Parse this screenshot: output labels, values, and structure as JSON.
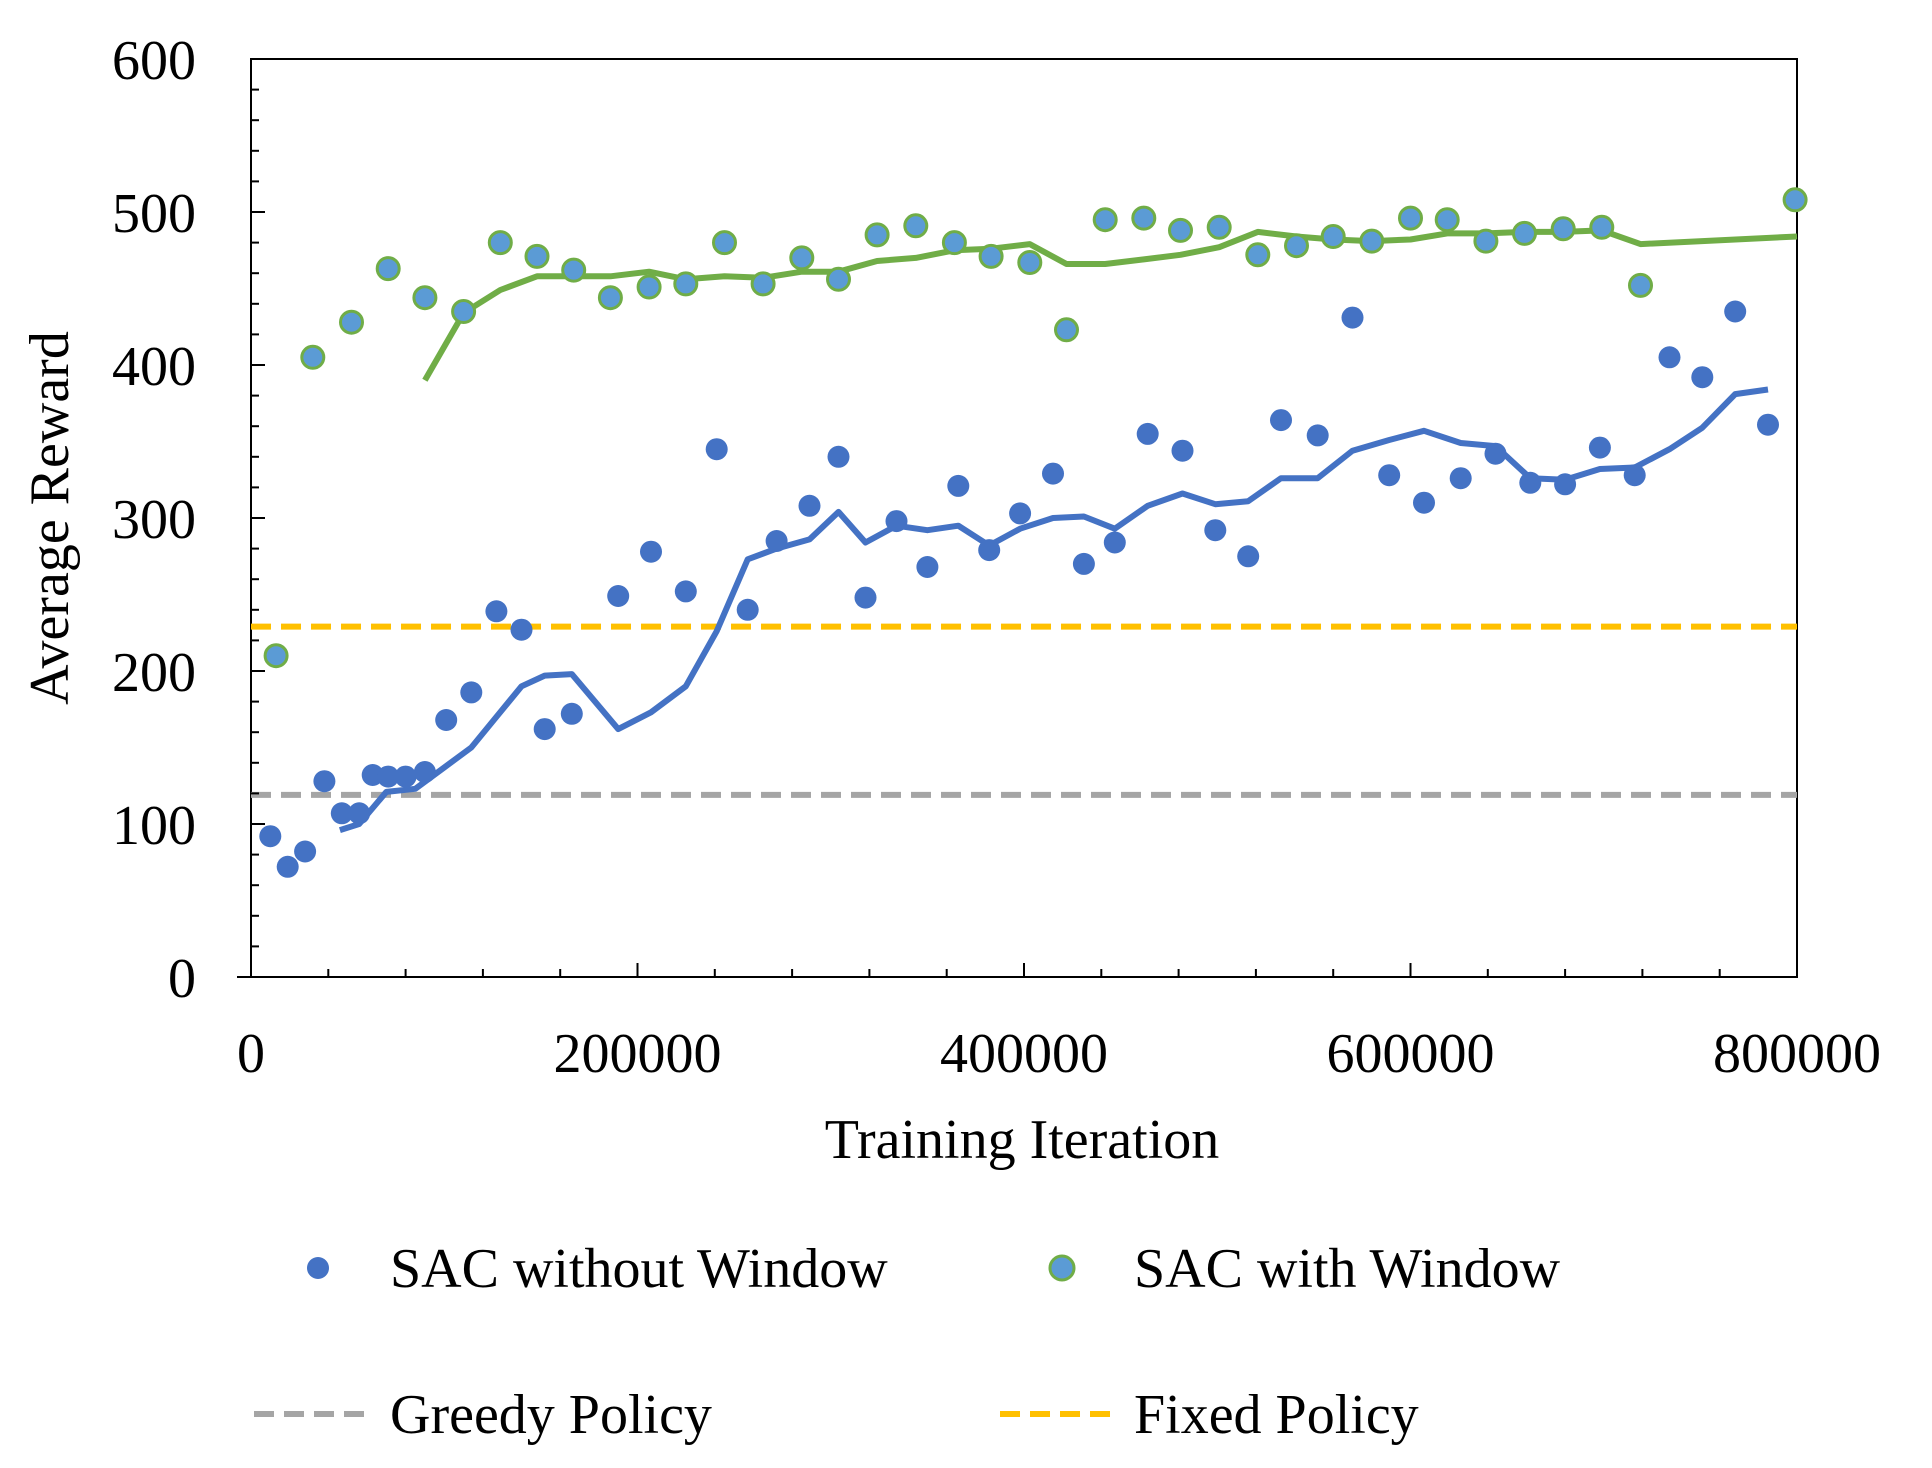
{
  "chart_data": {
    "type": "scatter",
    "xlabel": "Training Iteration",
    "ylabel": "Average Reward",
    "xlim": [
      0,
      800000
    ],
    "ylim": [
      0,
      600
    ],
    "x_ticks": [
      "0",
      "200000",
      "400000",
      "600000",
      "800000"
    ],
    "y_ticks": [
      "0",
      "100",
      "200",
      "300",
      "400",
      "500",
      "600"
    ],
    "grid": false,
    "legend_position": "bottom",
    "series": [
      {
        "name": "SAC without Window",
        "kind": "scatter",
        "color": "#4472C4",
        "points": [
          [
            10000,
            92
          ],
          [
            19000,
            72
          ],
          [
            28000,
            82
          ],
          [
            38000,
            128
          ],
          [
            47000,
            107
          ],
          [
            56000,
            107
          ],
          [
            63000,
            132
          ],
          [
            71000,
            131
          ],
          [
            80000,
            131
          ],
          [
            90000,
            134
          ],
          [
            101000,
            168
          ],
          [
            114000,
            186
          ],
          [
            127000,
            239
          ],
          [
            140000,
            227
          ],
          [
            152000,
            162
          ],
          [
            166000,
            172
          ],
          [
            190000,
            249
          ],
          [
            207000,
            278
          ],
          [
            225000,
            252
          ],
          [
            241000,
            345
          ],
          [
            257000,
            240
          ],
          [
            272000,
            285
          ],
          [
            289000,
            308
          ],
          [
            304000,
            340
          ],
          [
            318000,
            248
          ],
          [
            334000,
            298
          ],
          [
            350000,
            268
          ],
          [
            366000,
            321
          ],
          [
            382000,
            279
          ],
          [
            398000,
            303
          ],
          [
            415000,
            329
          ],
          [
            431000,
            270
          ],
          [
            447000,
            284
          ],
          [
            464000,
            355
          ],
          [
            482000,
            344
          ],
          [
            499000,
            292
          ],
          [
            516000,
            275
          ],
          [
            533000,
            364
          ],
          [
            552000,
            354
          ],
          [
            570000,
            431
          ],
          [
            589000,
            328
          ],
          [
            607000,
            310
          ],
          [
            626000,
            326
          ],
          [
            644000,
            342
          ],
          [
            662000,
            323
          ],
          [
            680000,
            322
          ],
          [
            698000,
            346
          ],
          [
            716000,
            328
          ],
          [
            734000,
            405
          ],
          [
            751000,
            392
          ],
          [
            768000,
            435
          ],
          [
            785000,
            361
          ]
        ]
      },
      {
        "name": "SAC with Window",
        "kind": "scatter",
        "color": "#5B9BD5",
        "edge_color": "#70AD47",
        "points": [
          [
            13000,
            210
          ],
          [
            32000,
            405
          ],
          [
            52000,
            428
          ],
          [
            71000,
            463
          ],
          [
            90000,
            444
          ],
          [
            110000,
            435
          ],
          [
            129000,
            480
          ],
          [
            148000,
            471
          ],
          [
            167000,
            462
          ],
          [
            186000,
            444
          ],
          [
            206000,
            451
          ],
          [
            225000,
            453
          ],
          [
            245000,
            480
          ],
          [
            265000,
            453
          ],
          [
            285000,
            470
          ],
          [
            304000,
            456
          ],
          [
            324000,
            485
          ],
          [
            344000,
            491
          ],
          [
            364000,
            480
          ],
          [
            383000,
            471
          ],
          [
            403000,
            467
          ],
          [
            422000,
            423
          ],
          [
            442000,
            495
          ],
          [
            462000,
            496
          ],
          [
            481000,
            488
          ],
          [
            501000,
            490
          ],
          [
            521000,
            472
          ],
          [
            541000,
            478
          ],
          [
            560000,
            484
          ],
          [
            580000,
            481
          ],
          [
            600000,
            496
          ],
          [
            619000,
            495
          ],
          [
            639000,
            481
          ],
          [
            659000,
            486
          ],
          [
            679000,
            489
          ],
          [
            699000,
            490
          ],
          [
            719000,
            452
          ],
          [
            799000,
            508
          ]
        ]
      },
      {
        "name": "",
        "kind": "line",
        "color": "#4472C4",
        "points": [
          [
            46000,
            96
          ],
          [
            56000,
            100
          ],
          [
            70000,
            121
          ],
          [
            85000,
            123
          ],
          [
            100000,
            137
          ],
          [
            114000,
            150
          ],
          [
            127000,
            170
          ],
          [
            140000,
            190
          ],
          [
            152000,
            197
          ],
          [
            166000,
            198
          ],
          [
            190000,
            162
          ],
          [
            207000,
            173
          ],
          [
            225000,
            190
          ],
          [
            241000,
            226
          ],
          [
            257000,
            273
          ],
          [
            272000,
            280
          ],
          [
            289000,
            286
          ],
          [
            304000,
            304
          ],
          [
            318000,
            284
          ],
          [
            334000,
            295
          ],
          [
            350000,
            292
          ],
          [
            366000,
            295
          ],
          [
            382000,
            282
          ],
          [
            398000,
            293
          ],
          [
            415000,
            300
          ],
          [
            431000,
            301
          ],
          [
            447000,
            293
          ],
          [
            464000,
            308
          ],
          [
            482000,
            316
          ],
          [
            499000,
            309
          ],
          [
            516000,
            311
          ],
          [
            533000,
            326
          ],
          [
            552000,
            326
          ],
          [
            570000,
            344
          ],
          [
            589000,
            351
          ],
          [
            607000,
            357
          ],
          [
            626000,
            349
          ],
          [
            644000,
            347
          ],
          [
            662000,
            326
          ],
          [
            680000,
            325
          ],
          [
            698000,
            332
          ],
          [
            716000,
            333
          ],
          [
            734000,
            345
          ],
          [
            751000,
            359
          ],
          [
            768000,
            381
          ],
          [
            785000,
            384
          ]
        ]
      },
      {
        "name": "",
        "kind": "line",
        "color": "#70AD47",
        "points": [
          [
            90000,
            390
          ],
          [
            110000,
            434
          ],
          [
            129000,
            449
          ],
          [
            148000,
            458
          ],
          [
            167000,
            458
          ],
          [
            186000,
            458
          ],
          [
            206000,
            461
          ],
          [
            225000,
            456
          ],
          [
            245000,
            458
          ],
          [
            265000,
            457
          ],
          [
            285000,
            461
          ],
          [
            304000,
            461
          ],
          [
            324000,
            468
          ],
          [
            344000,
            470
          ],
          [
            364000,
            475
          ],
          [
            383000,
            476
          ],
          [
            403000,
            479
          ],
          [
            422000,
            466
          ],
          [
            442000,
            466
          ],
          [
            462000,
            469
          ],
          [
            481000,
            472
          ],
          [
            501000,
            477
          ],
          [
            521000,
            487
          ],
          [
            541000,
            484
          ],
          [
            560000,
            482
          ],
          [
            580000,
            481
          ],
          [
            600000,
            482
          ],
          [
            619000,
            486
          ],
          [
            639000,
            486
          ],
          [
            659000,
            487
          ],
          [
            679000,
            487
          ],
          [
            699000,
            488
          ],
          [
            719000,
            479
          ],
          [
            800000,
            484
          ]
        ]
      },
      {
        "name": "Greedy Policy",
        "kind": "hline",
        "color": "#A5A5A5",
        "value": 119
      },
      {
        "name": "Fixed Policy",
        "kind": "hline",
        "color": "#FFC000",
        "value": 229
      }
    ]
  }
}
